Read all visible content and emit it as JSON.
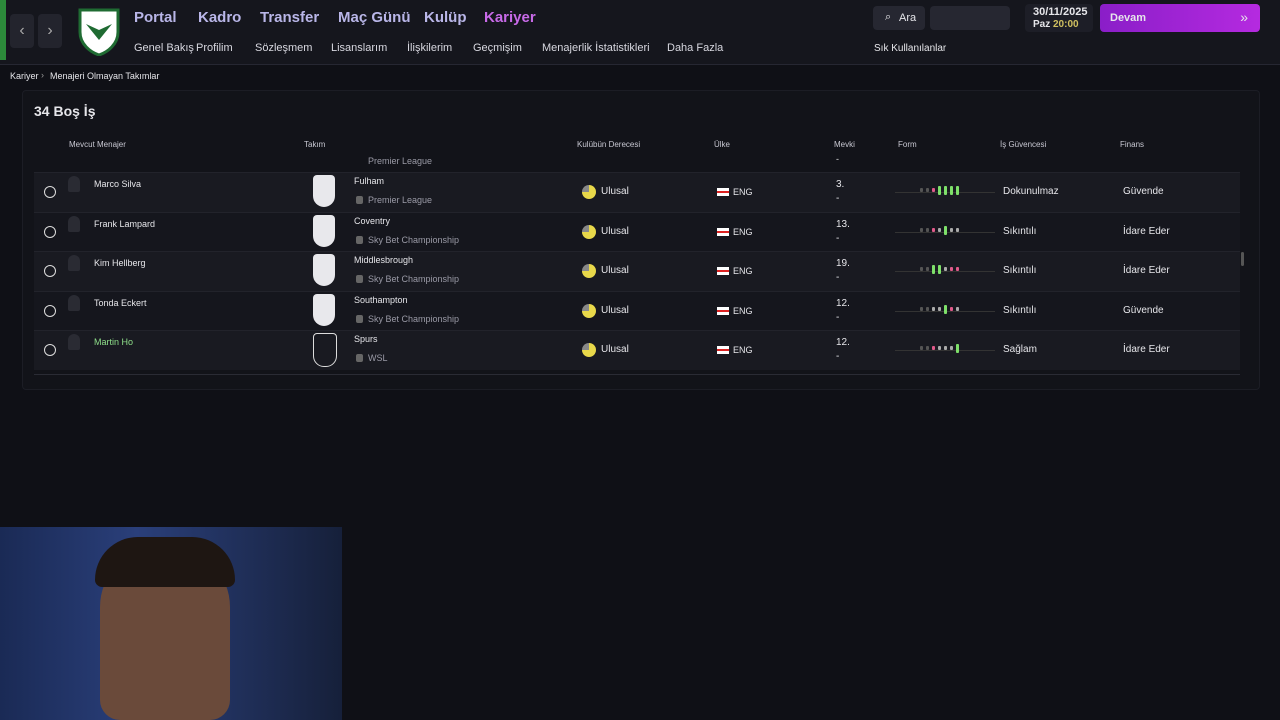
{
  "nav": {
    "main": [
      "Portal",
      "Kadro",
      "Transfer",
      "Maç Günü",
      "Kulüp",
      "Kariyer"
    ],
    "sub": [
      "Genel Bakış",
      "Profilim",
      "Sözleşmem",
      "Lisanslarım",
      "İlişkilerim",
      "Geçmişim",
      "Menajerlik İstatistikleri",
      "Daha Fazla"
    ],
    "search": "Ara",
    "date": "30/11/2025",
    "day": "Paz",
    "time": "20:00",
    "continue": "Devam",
    "favorites": "Sık Kullanılanlar"
  },
  "breadcrumb": [
    "Kariyer",
    "Menajeri Olmayan Takımlar"
  ],
  "panel": {
    "title": "34 Boş İş",
    "columns": [
      "Mevcut Menajer",
      "Takım",
      "Kulübün Derecesi",
      "Ülke",
      "Mevki",
      "Form",
      "İş Güvencesi",
      "Finans"
    ],
    "partial_row": {
      "league": "Premier League",
      "position": "-"
    },
    "rows": [
      {
        "manager": "Marco Silva",
        "team": "Fulham",
        "league": "Premier League",
        "reputation": "Ulusal",
        "country": "ENG",
        "position": "3.",
        "position_sub": "-",
        "job_security": "Dokunulmaz",
        "finance": "Güvende"
      },
      {
        "manager": "Frank Lampard",
        "team": "Coventry",
        "league": "Sky Bet Championship",
        "reputation": "Ulusal",
        "country": "ENG",
        "position": "13.",
        "position_sub": "-",
        "job_security": "Sıkıntılı",
        "finance": "İdare Eder"
      },
      {
        "manager": "Kim Hellberg",
        "team": "Middlesbrough",
        "league": "Sky Bet Championship",
        "reputation": "Ulusal",
        "country": "ENG",
        "position": "19.",
        "position_sub": "-",
        "job_security": "Sıkıntılı",
        "finance": "İdare Eder"
      },
      {
        "manager": "Tonda Eckert",
        "team": "Southampton",
        "league": "Sky Bet Championship",
        "reputation": "Ulusal",
        "country": "ENG",
        "position": "12.",
        "position_sub": "-",
        "job_security": "Sıkıntılı",
        "finance": "Güvende"
      },
      {
        "manager": "Martin Ho",
        "team": "Spurs",
        "league": "WSL",
        "reputation": "Ulusal",
        "country": "ENG",
        "position": "12.",
        "position_sub": "-",
        "job_security": "Sağlam",
        "finance": "İdare Eder"
      }
    ]
  }
}
